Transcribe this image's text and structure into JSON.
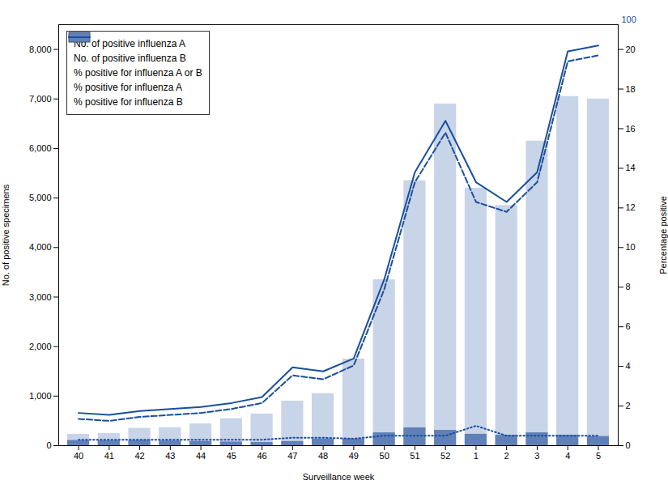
{
  "chart_data": {
    "type": "bar",
    "categories": [
      "40",
      "41",
      "42",
      "43",
      "44",
      "45",
      "46",
      "47",
      "48",
      "49",
      "50",
      "51",
      "52",
      "1",
      "2",
      "3",
      "4",
      "5"
    ],
    "xlabel": "Surveillance week",
    "ylabel": "No. of positive specimens",
    "y2label": "Percentage positive",
    "ylim": [
      0,
      8500
    ],
    "yticks": [
      0,
      {
        "value": 1000,
        "label": "1,000"
      },
      {
        "value": 2000,
        "label": "2,000"
      },
      {
        "value": 3000,
        "label": "3,000"
      },
      {
        "value": 4000,
        "label": "4,000"
      },
      {
        "value": 5000,
        "label": "5,000"
      },
      {
        "value": 6000,
        "label": "6,000"
      },
      {
        "value": 7000,
        "label": "7,000"
      },
      {
        "value": 8000,
        "label": "8,000"
      }
    ],
    "y2lim": [
      0,
      21.25
    ],
    "y2ticks": [
      0,
      2,
      4,
      6,
      8,
      10,
      12,
      14,
      16,
      18,
      20
    ],
    "stacked": false,
    "grid": false,
    "legend": "upper left",
    "annotations": [
      {
        "text": "100"
      }
    ],
    "series": [
      {
        "name": "No. of positive influenza A",
        "type": "bar",
        "color": "#c8d4e8",
        "values": [
          230,
          245,
          350,
          365,
          440,
          545,
          640,
          900,
          1050,
          1750,
          3350,
          5350,
          6900,
          5200,
          4850,
          6150,
          7050,
          7000
        ]
      },
      {
        "name": "No. of positive influenza B",
        "type": "bar",
        "color": "#6080b8",
        "values": [
          105,
          100,
          105,
          95,
          85,
          75,
          65,
          85,
          135,
          135,
          260,
          360,
          310,
          230,
          210,
          260,
          210,
          185
        ]
      },
      {
        "name": "% positive for influenza A or B",
        "type": "line",
        "axis": "y2",
        "color": "#1a4f9c",
        "line_style": "solid",
        "values": [
          1.65,
          1.55,
          1.75,
          1.85,
          1.95,
          2.15,
          2.45,
          3.95,
          3.75,
          4.4,
          8.4,
          13.8,
          16.4,
          13.3,
          12.3,
          13.8,
          19.9,
          20.2
        ]
      },
      {
        "name": "% positive for influenza A",
        "type": "line",
        "axis": "y2",
        "color": "#1a4f9c",
        "line_style": "dashed",
        "values": [
          1.35,
          1.25,
          1.45,
          1.55,
          1.65,
          1.85,
          2.15,
          3.55,
          3.35,
          4.05,
          7.9,
          13.3,
          15.8,
          12.3,
          11.8,
          13.3,
          19.4,
          19.7
        ]
      },
      {
        "name": "% positive for influenza B",
        "type": "line",
        "axis": "y2",
        "color": "#1a4f9c",
        "line_style": "dotted",
        "values": [
          0.3,
          0.3,
          0.3,
          0.3,
          0.3,
          0.3,
          0.3,
          0.4,
          0.4,
          0.35,
          0.5,
          0.5,
          0.5,
          1.0,
          0.5,
          0.5,
          0.5,
          0.5
        ]
      }
    ]
  }
}
